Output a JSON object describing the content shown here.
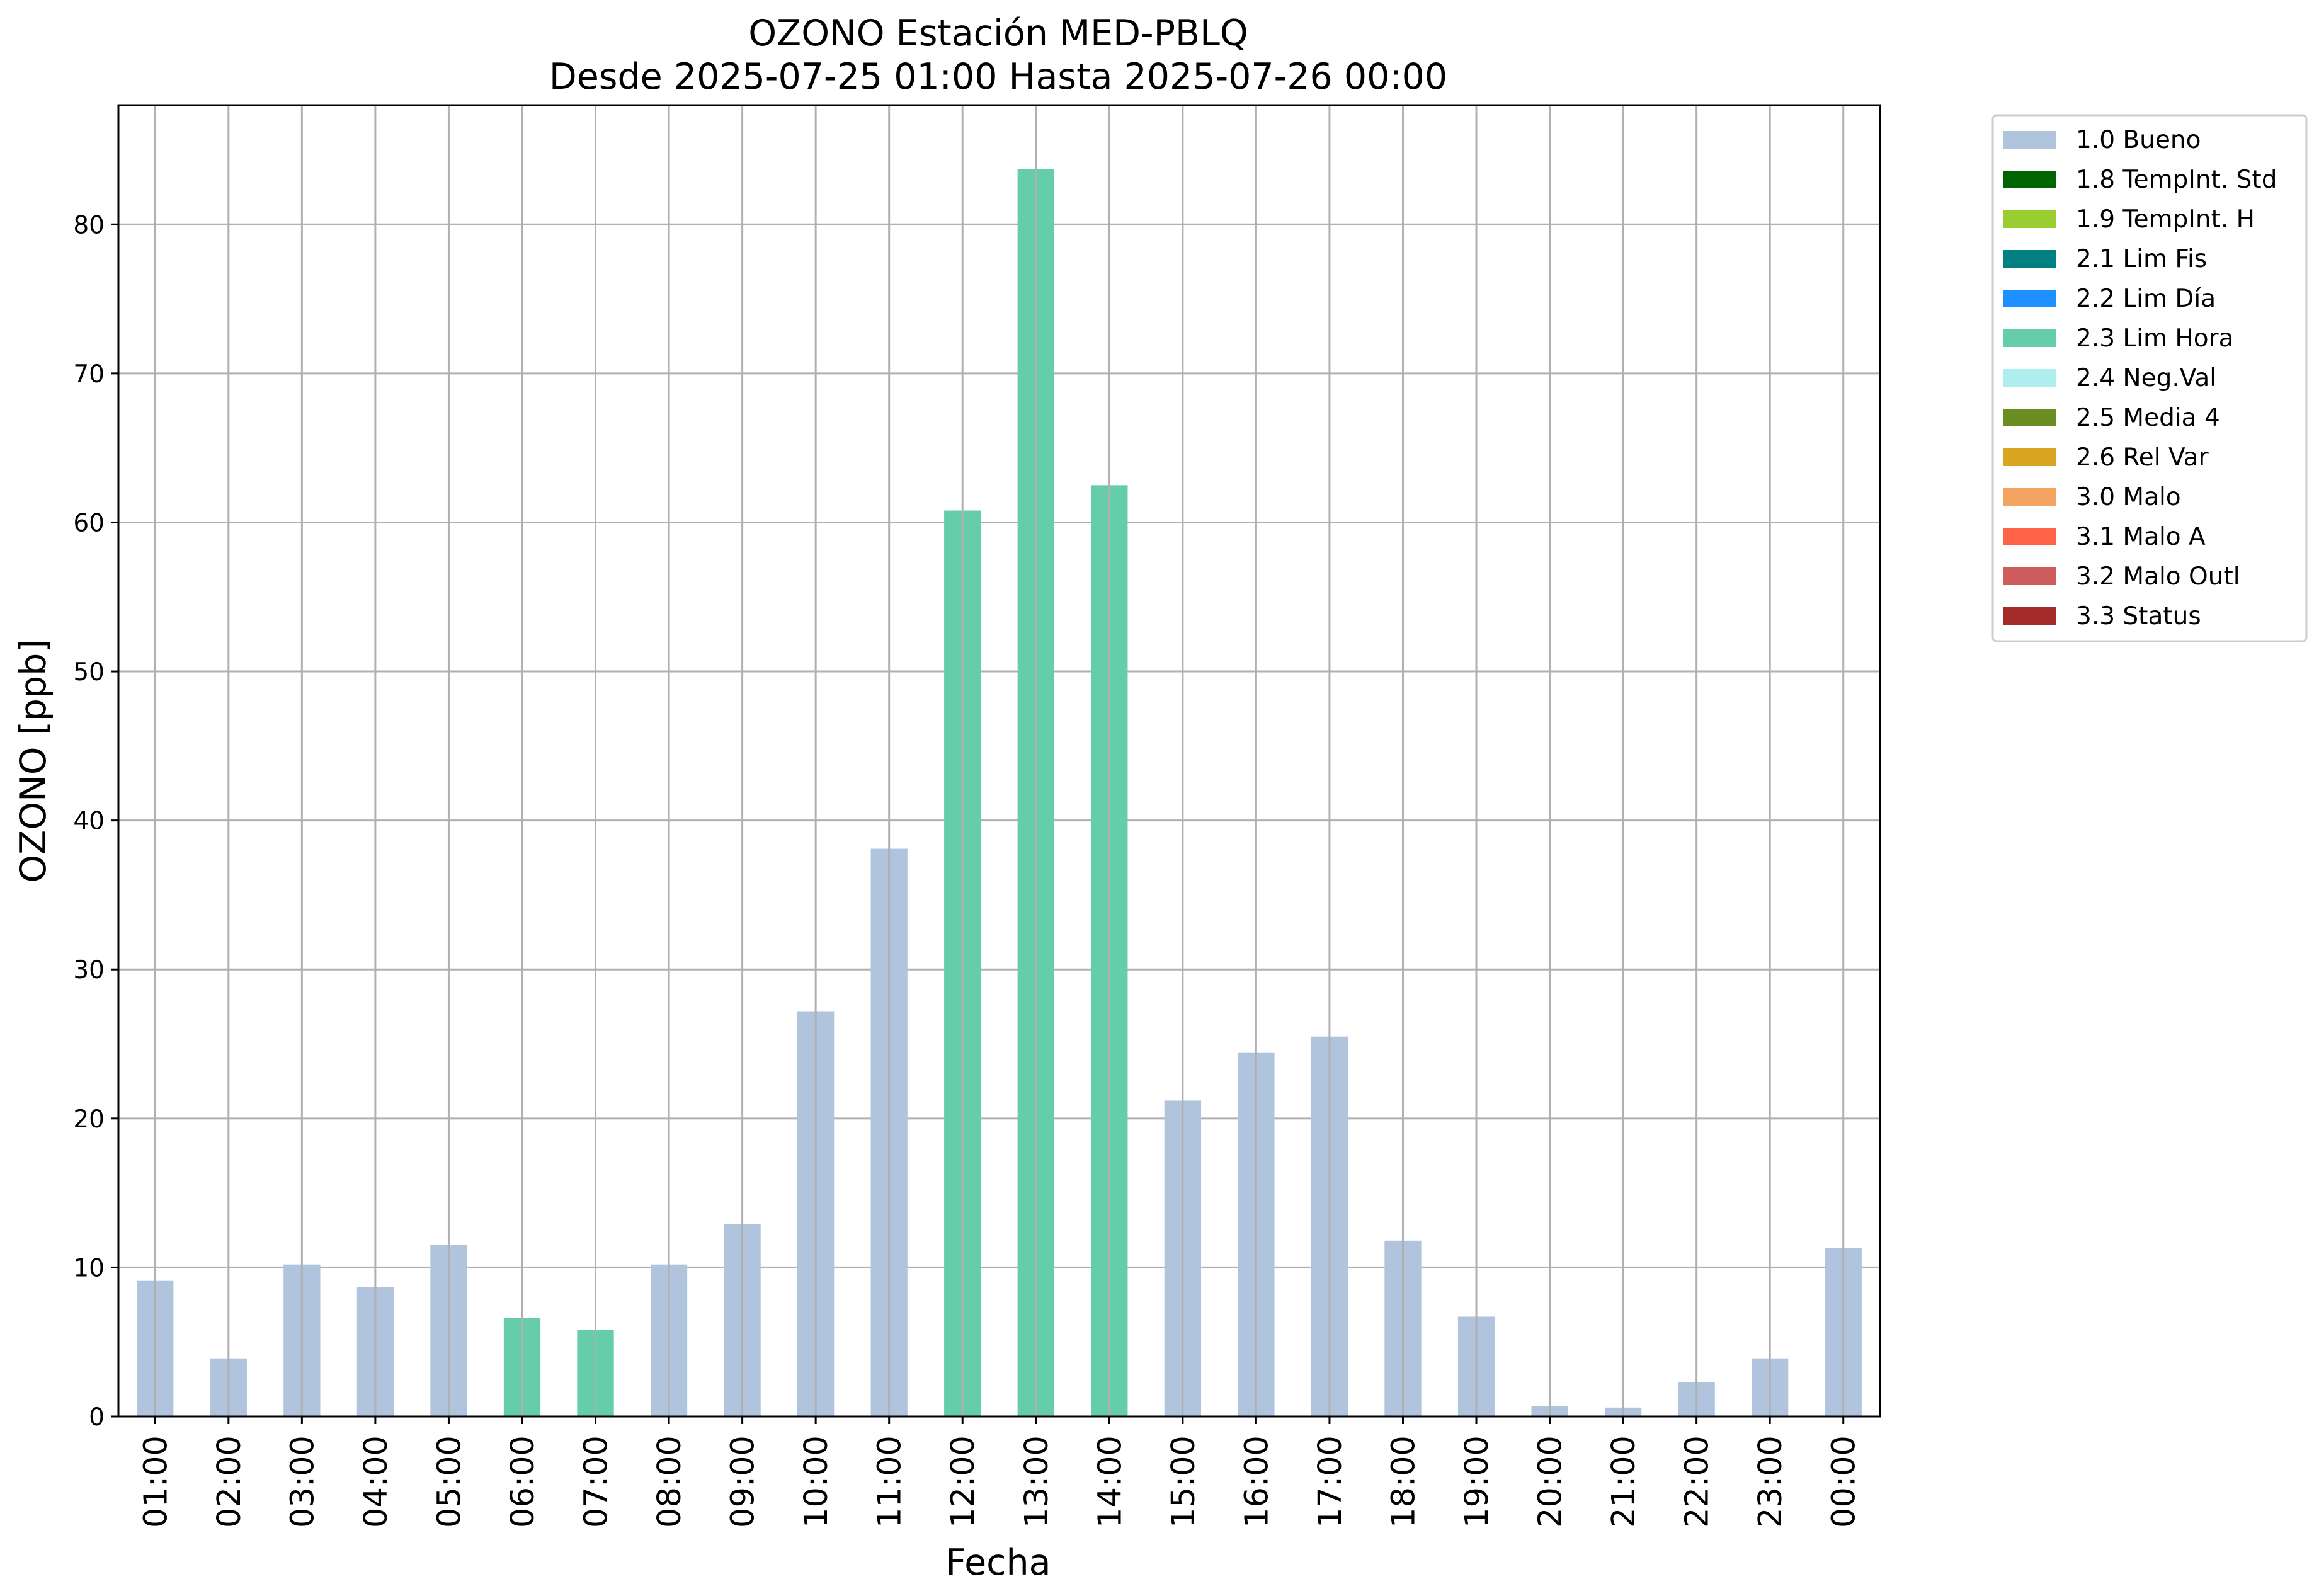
{
  "chart_data": {
    "type": "bar",
    "title": "OZONO Estación MED-PBLQ",
    "subtitle": "Desde 2025-07-25 01:00 Hasta 2025-07-26 00:00",
    "xlabel": "Fecha",
    "ylabel": "OZONO [ppb]",
    "ylim": [
      0,
      88
    ],
    "yticks": [
      0,
      10,
      20,
      30,
      40,
      50,
      60,
      70,
      80
    ],
    "grid": true,
    "legend_position": "outside-top-right",
    "categories": [
      "01:00",
      "02:00",
      "03:00",
      "04:00",
      "05:00",
      "06:00",
      "07:00",
      "08:00",
      "09:00",
      "10:00",
      "11:00",
      "12:00",
      "13:00",
      "14:00",
      "15:00",
      "16:00",
      "17:00",
      "18:00",
      "19:00",
      "20:00",
      "21:00",
      "22:00",
      "23:00",
      "00:00"
    ],
    "values": [
      9.1,
      3.9,
      10.2,
      8.7,
      11.5,
      6.6,
      5.8,
      10.2,
      12.9,
      27.2,
      38.1,
      60.8,
      83.7,
      62.5,
      21.2,
      24.4,
      25.5,
      11.8,
      6.7,
      0.7,
      0.6,
      2.3,
      3.9,
      11.3
    ],
    "flags": [
      "1.0 Bueno",
      "1.0 Bueno",
      "1.0 Bueno",
      "1.0 Bueno",
      "1.0 Bueno",
      "2.3 Lim Hora",
      "2.3 Lim Hora",
      "1.0 Bueno",
      "1.0 Bueno",
      "1.0 Bueno",
      "1.0 Bueno",
      "2.3 Lim Hora",
      "2.3 Lim Hora",
      "2.3 Lim Hora",
      "1.0 Bueno",
      "1.0 Bueno",
      "1.0 Bueno",
      "1.0 Bueno",
      "1.0 Bueno",
      "1.0 Bueno",
      "1.0 Bueno",
      "1.0 Bueno",
      "1.0 Bueno",
      "1.0 Bueno"
    ],
    "legend": [
      {
        "label": "1.0 Bueno",
        "color": "#b0c4de"
      },
      {
        "label": "1.8 TempInt. Std",
        "color": "#006400"
      },
      {
        "label": "1.9 TempInt. H",
        "color": "#9acd32"
      },
      {
        "label": "2.1 Lim Fis",
        "color": "#008080"
      },
      {
        "label": "2.2 Lim Día",
        "color": "#1e90ff"
      },
      {
        "label": "2.3 Lim Hora",
        "color": "#66cdaa"
      },
      {
        "label": "2.4 Neg.Val",
        "color": "#afeeee"
      },
      {
        "label": "2.5 Media 4",
        "color": "#6b8e23"
      },
      {
        "label": "2.6 Rel Var",
        "color": "#daa520"
      },
      {
        "label": "3.0 Malo",
        "color": "#f4a460"
      },
      {
        "label": "3.1 Malo A",
        "color": "#ff6347"
      },
      {
        "label": "3.2 Malo Outl",
        "color": "#cd5c5c"
      },
      {
        "label": "3.3 Status",
        "color": "#a52a2a"
      }
    ]
  }
}
